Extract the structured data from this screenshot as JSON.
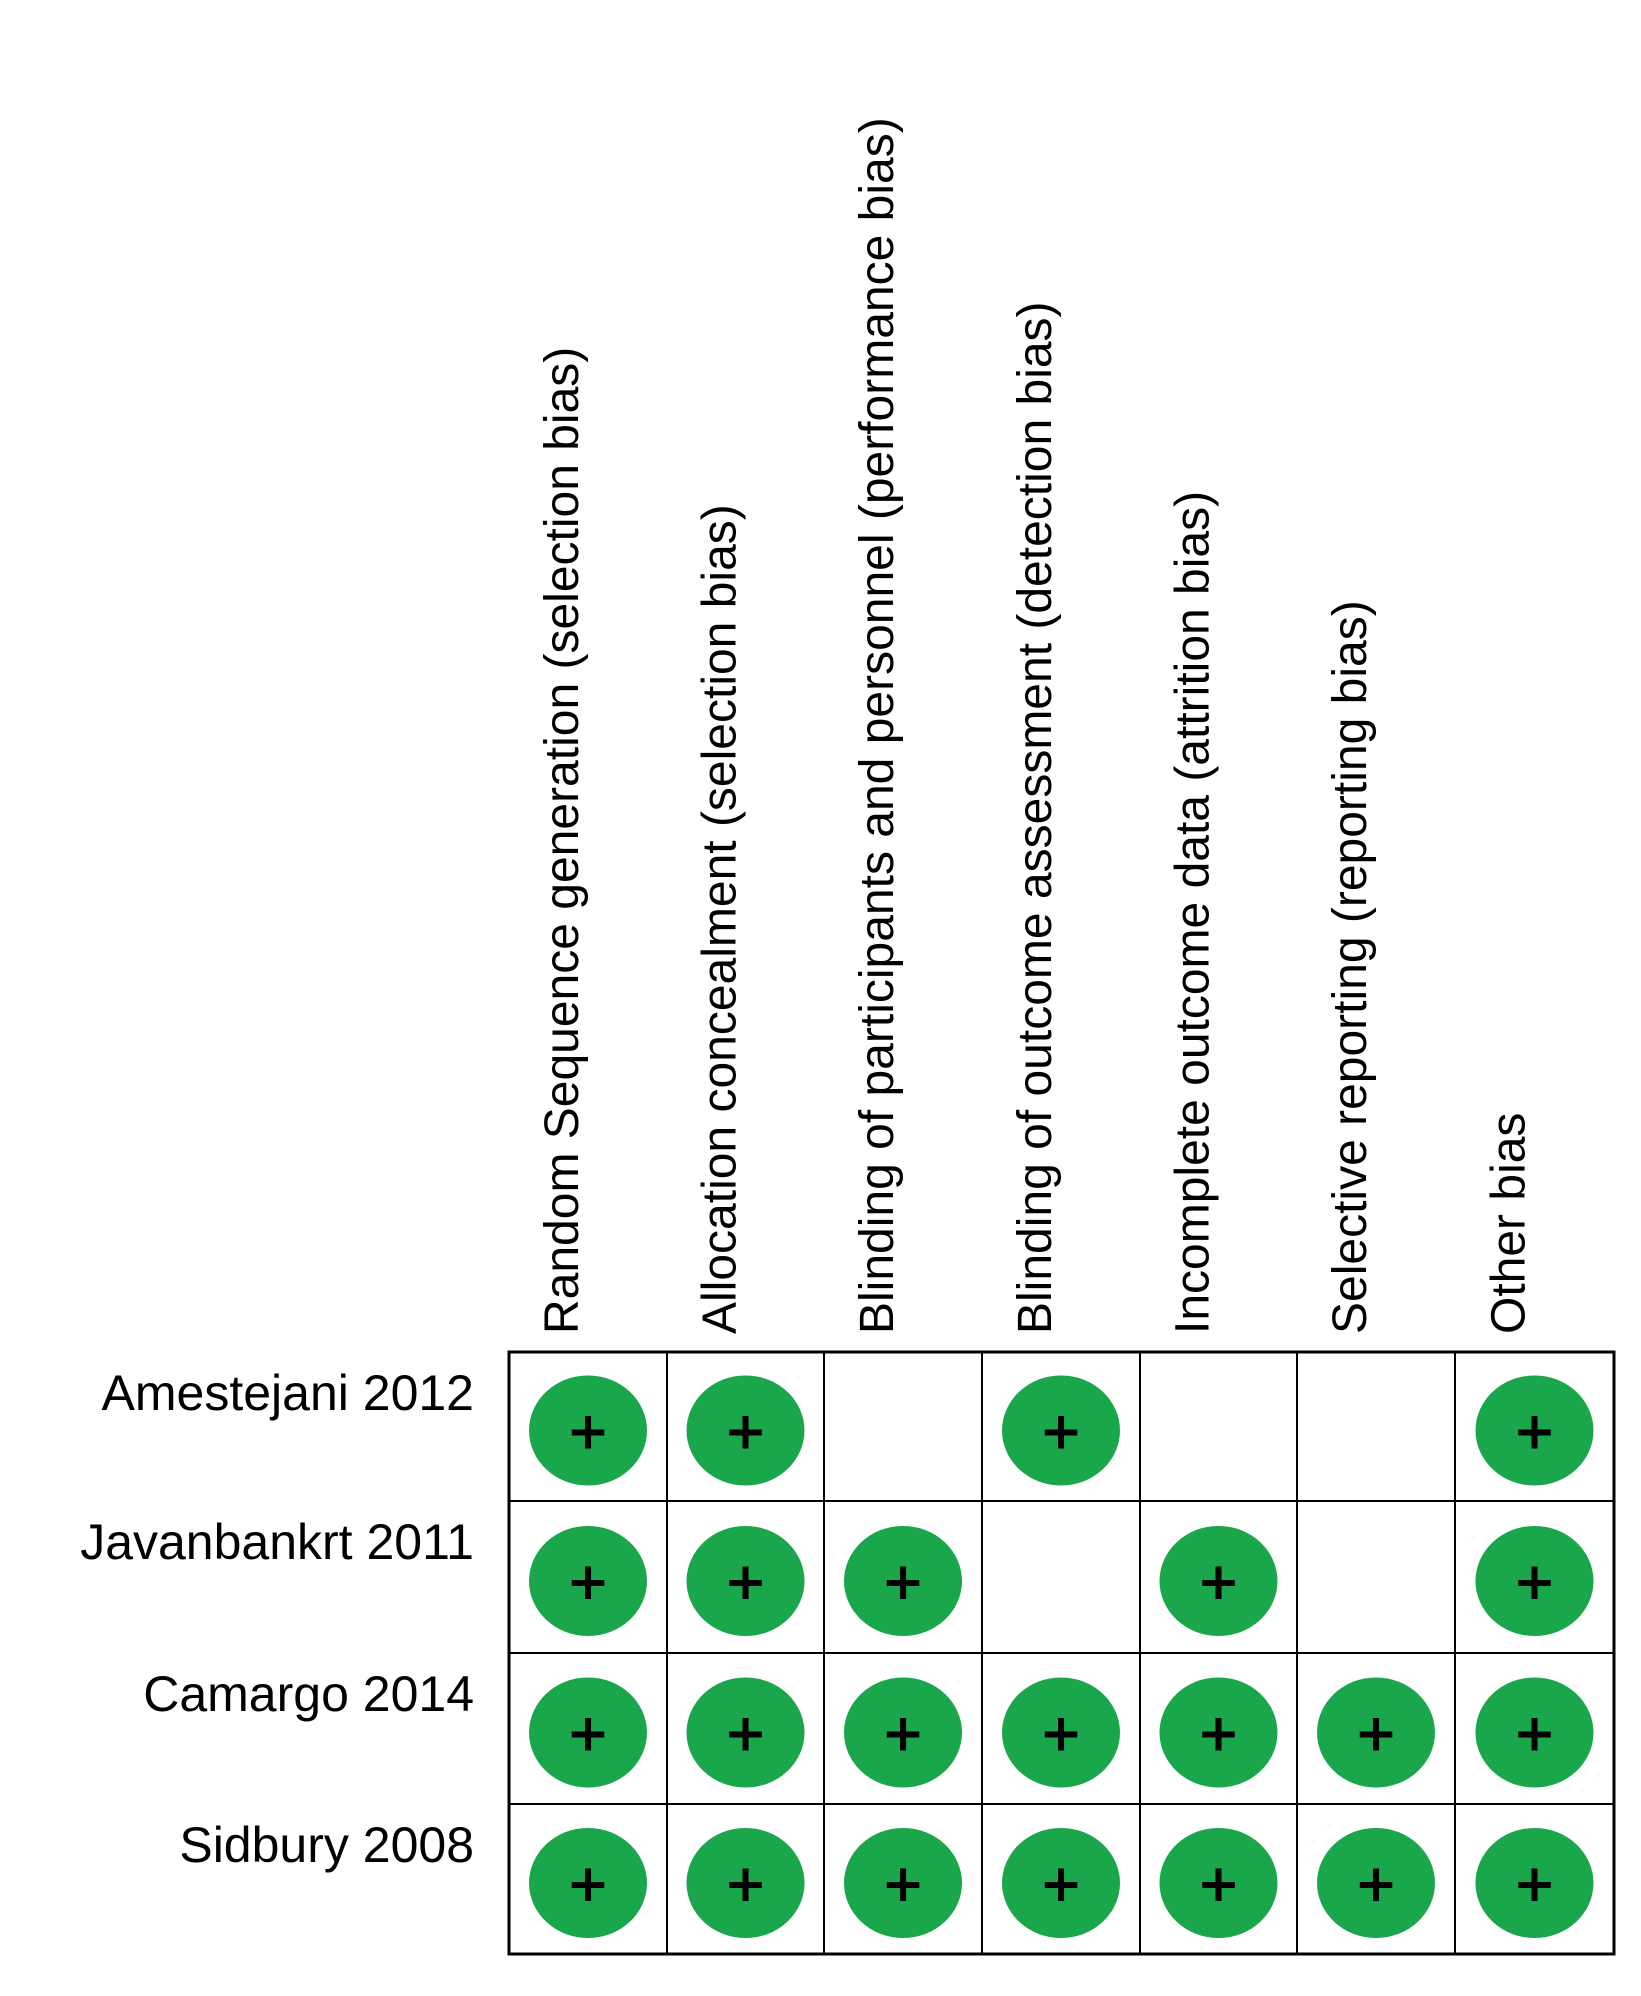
{
  "chart_data": {
    "type": "table",
    "columns": [
      "Random Sequence generation (selection bias)",
      "Allocation concealment (selection bias)",
      "Blinding of participants and personnel (performance bias)",
      "Blinding of outcome assessment (detection bias)",
      "Incomplete outcome data (attrition bias)",
      "Selective reporting  (reporting bias)",
      "Other bias"
    ],
    "rows": [
      "Amestejani 2012",
      "Javanbankrt 2011",
      "Camargo 2014",
      "Sidbury 2008"
    ],
    "cells": [
      [
        "+",
        "+",
        "",
        "+",
        "",
        "",
        "+"
      ],
      [
        "+",
        "+",
        "+",
        "",
        "+",
        "",
        "+"
      ],
      [
        "+",
        "+",
        "+",
        "+",
        "+",
        "+",
        "+"
      ],
      [
        "+",
        "+",
        "+",
        "+",
        "+",
        "+",
        "+"
      ]
    ],
    "marker_color": "#1aa64a",
    "grid": true
  }
}
